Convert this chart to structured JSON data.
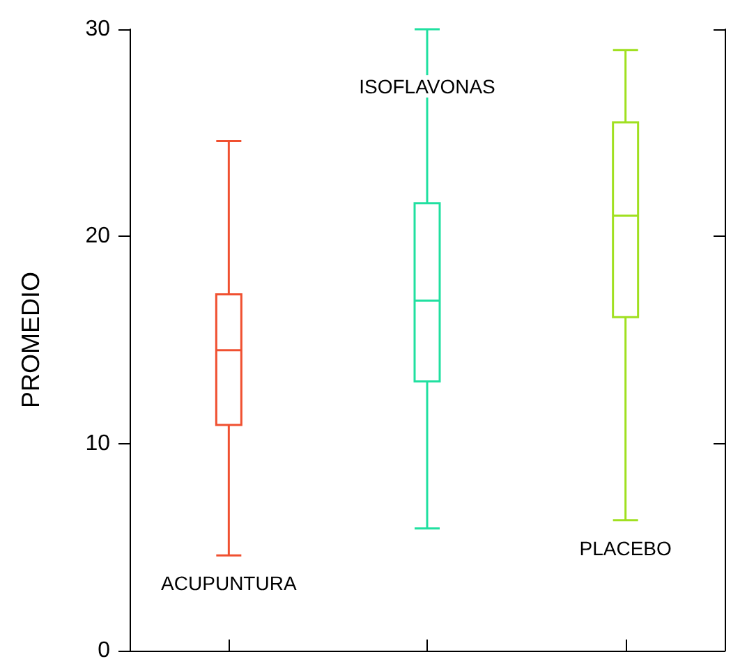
{
  "chart_data": {
    "type": "box",
    "ylabel": "PROMEDIO",
    "categories": [
      "ACUPUNTURA",
      "ISOFLAVONAS",
      "PLACEBO"
    ],
    "colors": [
      "#f05030",
      "#20e0a0",
      "#a0e020"
    ],
    "boxes": [
      {
        "low": 4.6,
        "q1": 10.9,
        "median": 14.5,
        "q3": 17.2,
        "high": 24.6
      },
      {
        "low": 5.9,
        "q1": 13.0,
        "median": 16.9,
        "q3": 21.6,
        "high": 30
      },
      {
        "low": 6.3,
        "q1": 16.1,
        "median": 21.0,
        "q3": 25.5,
        "high": 29.0
      }
    ],
    "ylim": [
      0,
      30
    ],
    "yticks": [
      0,
      10,
      20,
      30
    ],
    "tick_labels": "y",
    "grid": false
  }
}
